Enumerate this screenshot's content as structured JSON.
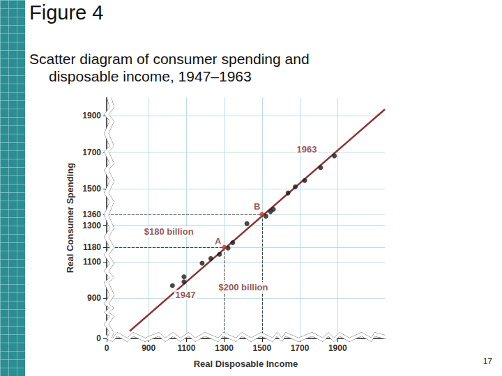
{
  "title": "Figure 4",
  "subtitle": "Scatter diagram of consumer spending and disposable income, 1947–1963",
  "page_number": "17",
  "chart_data": {
    "type": "scatter",
    "x_label": "Real Disposable Income",
    "y_label": "Real Consumer Spending",
    "xlim": [
      0,
      2150
    ],
    "ylim": [
      0,
      2000
    ],
    "xticks": [
      0,
      900,
      1100,
      1300,
      1500,
      1700,
      1900
    ],
    "yticks": [
      0,
      900,
      1100,
      1180,
      1300,
      1360,
      1500,
      1700,
      1900
    ],
    "grid": true,
    "series": [
      {
        "type": "line",
        "color": "#8b3232",
        "line_style": "solid",
        "x": [
          800,
          2150
        ],
        "values": [
          720,
          1935
        ]
      },
      {
        "type": "scatter",
        "color": "#1a1a1a",
        "marker": "circle",
        "x": [
          1026,
          1087,
          1087,
          1183,
          1229,
          1275,
          1320,
          1345,
          1420,
          1520,
          1545,
          1560,
          1638,
          1676,
          1726,
          1810,
          1883
        ],
        "values": [
          969,
          1018,
          990,
          1092,
          1118,
          1141,
          1175,
          1205,
          1309,
          1350,
          1375,
          1388,
          1477,
          1511,
          1545,
          1616,
          1680
        ]
      },
      {
        "type": "scatter",
        "color": "#c0392b",
        "marker": "circle",
        "line_style": "dashed",
        "x": [
          1300,
          1500
        ],
        "values": [
          1180,
          1360
        ]
      }
    ],
    "annotations": [
      {
        "text": "A",
        "x": 1267,
        "y": 1213
      },
      {
        "text": "B",
        "x": 1474,
        "y": 1403
      },
      {
        "text": "$180 billion",
        "x": 1007,
        "y": 1264
      },
      {
        "text": "$200 billion",
        "x": 1401,
        "y": 961
      },
      {
        "text": "1947",
        "x": 1095,
        "y": 919
      },
      {
        "text": "1963",
        "x": 1737,
        "y": 1717
      }
    ]
  }
}
